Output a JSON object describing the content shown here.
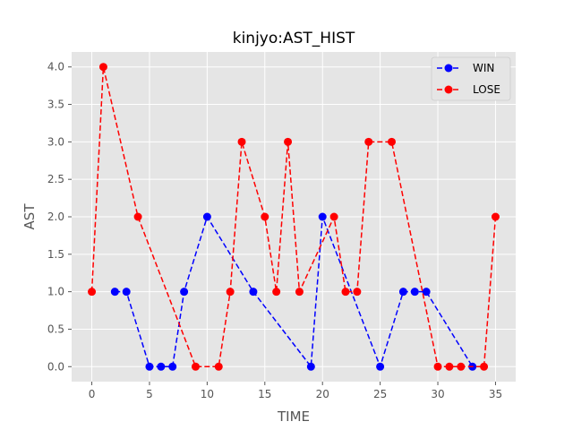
{
  "chart_data": {
    "type": "line",
    "title": "kinjyo:AST_HIST",
    "xlabel": "TIME",
    "ylabel": "AST",
    "xlim": [
      -1.75,
      36.75
    ],
    "ylim": [
      -0.2,
      4.2
    ],
    "x_ticks": [
      0,
      5,
      10,
      15,
      20,
      25,
      30,
      35
    ],
    "y_ticks": [
      0.0,
      0.5,
      1.0,
      1.5,
      2.0,
      2.5,
      3.0,
      3.5,
      4.0
    ],
    "x_tick_labels": [
      "0",
      "5",
      "10",
      "15",
      "20",
      "25",
      "30",
      "35"
    ],
    "y_tick_labels": [
      "0.0",
      "0.5",
      "1.0",
      "1.5",
      "2.0",
      "2.5",
      "3.0",
      "3.5",
      "4.0"
    ],
    "grid": true,
    "legend_position": "top-right",
    "plot_background": "#e5e5e5",
    "series": [
      {
        "name": "WIN",
        "color": "#0000ff",
        "line_style": "dashed",
        "marker": "circle",
        "x": [
          2,
          3,
          5,
          6,
          7,
          8,
          10,
          14,
          19,
          20,
          25,
          27,
          28,
          29,
          33
        ],
        "y": [
          1,
          1,
          0,
          0,
          0,
          1,
          2,
          1,
          0,
          2,
          0,
          1,
          1,
          1,
          0
        ]
      },
      {
        "name": "LOSE",
        "color": "#ff0000",
        "line_style": "dashed",
        "marker": "circle",
        "x": [
          0,
          1,
          4,
          9,
          11,
          12,
          13,
          15,
          16,
          17,
          18,
          21,
          22,
          23,
          24,
          26,
          30,
          31,
          32,
          34,
          35
        ],
        "y": [
          1,
          4,
          2,
          0,
          0,
          1,
          3,
          2,
          1,
          3,
          1,
          2,
          1,
          1,
          3,
          3,
          0,
          0,
          0,
          0,
          2
        ]
      }
    ]
  }
}
